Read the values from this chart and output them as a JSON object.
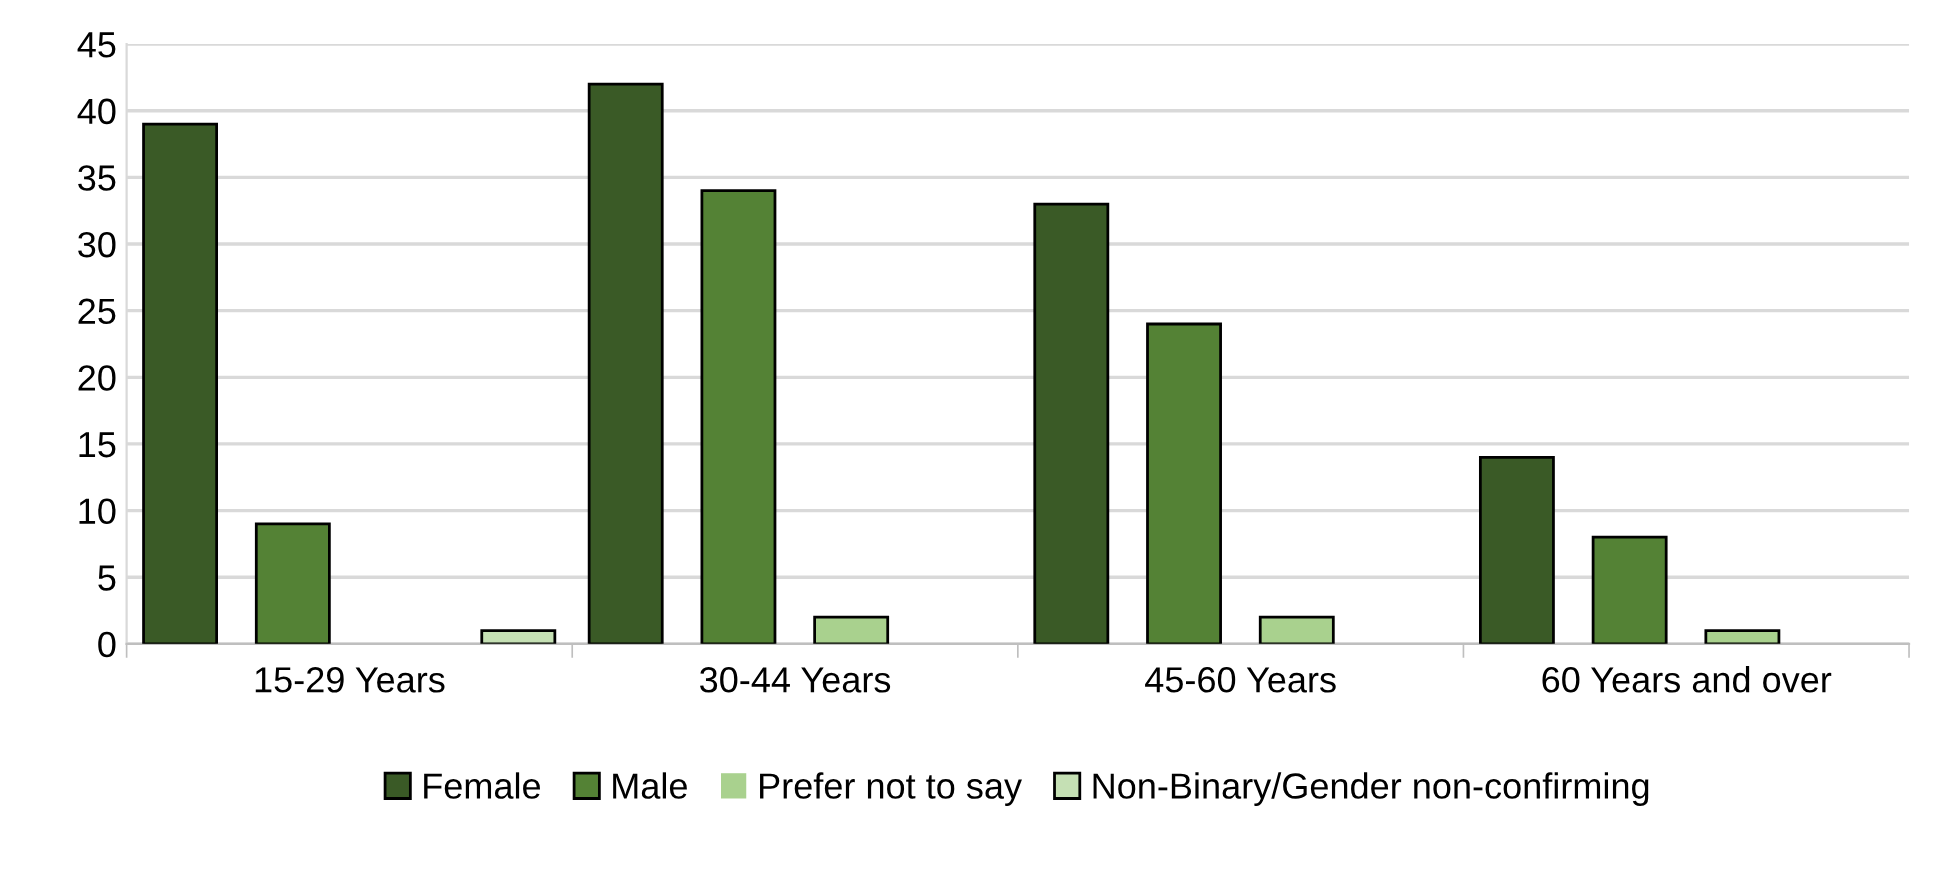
{
  "chart_data": {
    "type": "bar",
    "categories": [
      "15-29 Years",
      "30-44 Years",
      "45-60 Years",
      "60 Years and over"
    ],
    "series": [
      {
        "name": "Female",
        "color": "#3a5a26",
        "values": [
          39,
          42,
          33,
          14
        ]
      },
      {
        "name": "Male",
        "color": "#548235",
        "values": [
          9,
          34,
          24,
          8
        ]
      },
      {
        "name": "Prefer not to say",
        "color": "#a9d18e",
        "values": [
          0,
          2,
          2,
          1
        ]
      },
      {
        "name": "Non-Binary/Gender non-confirming",
        "color": "#c5e0b4",
        "values": [
          1,
          0,
          0,
          0
        ]
      }
    ],
    "ylim": [
      0,
      45
    ],
    "yticks": [
      0,
      5,
      10,
      15,
      20,
      25,
      30,
      35,
      40,
      45
    ],
    "grid": "y",
    "legend": "bottom"
  }
}
